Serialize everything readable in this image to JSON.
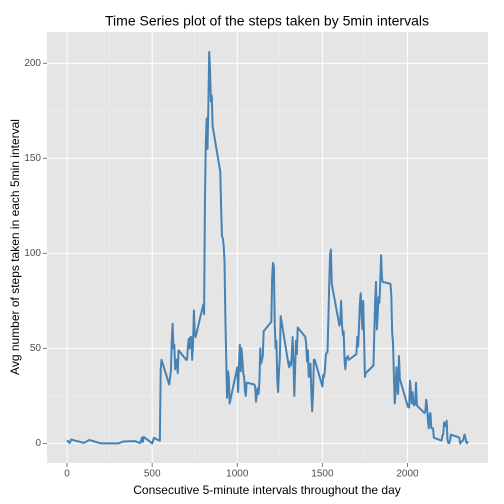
{
  "chart_data": {
    "type": "line",
    "title": "Time Series plot of the steps taken by 5min intervals",
    "xlabel": "Consecutive 5-minute intervals throughout the day",
    "ylabel": "Avg number of steps taken in each 5min interval",
    "xlim": [
      -118,
      2473
    ],
    "ylim": [
      -10.3,
      216.5
    ],
    "xticks": [
      0,
      500,
      1000,
      1500,
      2000
    ],
    "yticks": [
      0,
      50,
      100,
      150,
      200
    ],
    "grid": true,
    "series": [
      {
        "color": "#4682B4",
        "x": [
          0,
          15,
          25,
          45,
          100,
          130,
          200,
          300,
          330,
          400,
          430,
          440,
          445,
          450,
          500,
          510,
          530,
          545,
          550,
          555,
          600,
          610,
          615,
          620,
          625,
          630,
          635,
          640,
          645,
          650,
          655,
          700,
          705,
          710,
          715,
          720,
          725,
          730,
          735,
          740,
          745,
          750,
          755,
          800,
          805,
          810,
          815,
          820,
          825,
          830,
          835,
          840,
          845,
          850,
          855,
          900,
          905,
          910,
          915,
          920,
          925,
          930,
          935,
          940,
          945,
          950,
          955,
          1000,
          1005,
          1010,
          1015,
          1020,
          1025,
          1030,
          1035,
          1040,
          1045,
          1050,
          1055,
          1100,
          1105,
          1110,
          1115,
          1120,
          1125,
          1130,
          1135,
          1140,
          1145,
          1150,
          1155,
          1200,
          1205,
          1210,
          1215,
          1220,
          1225,
          1230,
          1235,
          1240,
          1245,
          1250,
          1255,
          1300,
          1305,
          1310,
          1315,
          1320,
          1325,
          1330,
          1335,
          1340,
          1345,
          1350,
          1355,
          1400,
          1405,
          1410,
          1415,
          1420,
          1425,
          1430,
          1435,
          1440,
          1445,
          1450,
          1455,
          1500,
          1505,
          1510,
          1515,
          1520,
          1525,
          1530,
          1535,
          1540,
          1545,
          1550,
          1555,
          1600,
          1605,
          1610,
          1615,
          1620,
          1625,
          1630,
          1635,
          1640,
          1645,
          1650,
          1655,
          1700,
          1705,
          1710,
          1715,
          1720,
          1725,
          1730,
          1735,
          1740,
          1745,
          1750,
          1755,
          1800,
          1805,
          1810,
          1815,
          1820,
          1825,
          1830,
          1835,
          1840,
          1845,
          1850,
          1855,
          1900,
          1905,
          1910,
          1915,
          1920,
          1925,
          1930,
          1935,
          1940,
          1945,
          1950,
          1955,
          2000,
          2005,
          2010,
          2015,
          2020,
          2025,
          2030,
          2035,
          2040,
          2045,
          2050,
          2055,
          2100,
          2105,
          2110,
          2115,
          2120,
          2125,
          2130,
          2135,
          2140,
          2145,
          2150,
          2155,
          2200,
          2205,
          2210,
          2215,
          2220,
          2225,
          2230,
          2235,
          2240,
          2245,
          2250,
          2255,
          2300,
          2305,
          2310,
          2315,
          2320,
          2325,
          2330,
          2335,
          2340,
          2345,
          2350,
          2355
        ],
        "values": [
          1.7,
          0.2,
          2.1,
          1.5,
          0.3,
          1.8,
          0,
          0,
          1,
          1.2,
          0.2,
          3,
          0.8,
          3.5,
          0,
          3,
          2,
          1.5,
          39,
          44,
          31,
          38,
          54,
          63,
          50,
          52,
          39,
          44,
          44,
          37,
          49,
          44,
          44,
          51,
          55,
          50,
          56,
          56,
          44,
          52,
          70,
          58,
          56,
          73,
          68,
          129,
          158,
          171,
          155,
          177,
          206,
          196,
          180,
          183,
          167,
          143,
          124,
          109,
          108,
          104,
          96,
          66,
          45,
          24,
          38,
          35,
          21,
          40,
          27,
          42,
          52,
          38,
          50,
          44,
          37,
          35,
          28,
          25,
          32,
          31,
          30,
          22,
          26,
          29,
          26,
          33,
          50,
          42,
          44,
          46,
          59,
          64,
          88,
          95,
          93,
          63,
          50,
          54,
          33,
          27,
          38,
          45,
          67,
          42,
          40,
          43,
          41,
          46,
          56,
          43,
          25,
          40,
          54,
          47,
          61,
          56,
          52,
          43,
          49,
          35,
          38,
          42,
          27,
          17,
          26,
          44,
          44,
          30,
          36,
          35,
          39,
          46,
          48,
          48,
          65,
          83,
          99,
          102,
          84,
          62,
          64,
          75,
          63,
          57,
          59,
          44,
          39,
          45,
          45,
          46,
          44,
          47,
          56,
          51,
          61,
          73,
          79,
          69,
          60,
          75,
          56,
          35,
          37,
          41,
          58,
          75,
          85,
          60,
          68,
          77,
          74,
          85,
          99,
          87,
          85,
          84,
          78,
          58,
          53,
          36,
          21,
          27,
          40,
          30,
          26,
          46,
          34,
          20,
          19,
          19,
          33,
          27,
          21,
          27,
          21,
          20,
          21,
          32,
          20,
          16,
          17,
          23,
          19,
          12,
          8,
          15,
          16,
          8,
          8,
          8,
          3,
          1.5,
          4,
          5,
          11,
          9,
          10,
          12,
          2,
          0.3,
          0.1,
          1.6,
          4.6,
          3.3,
          2.8,
          0,
          0.8,
          1,
          1.6,
          2.6,
          4.7,
          3.3,
          0.6,
          0.2,
          1.1
        ]
      }
    ]
  }
}
